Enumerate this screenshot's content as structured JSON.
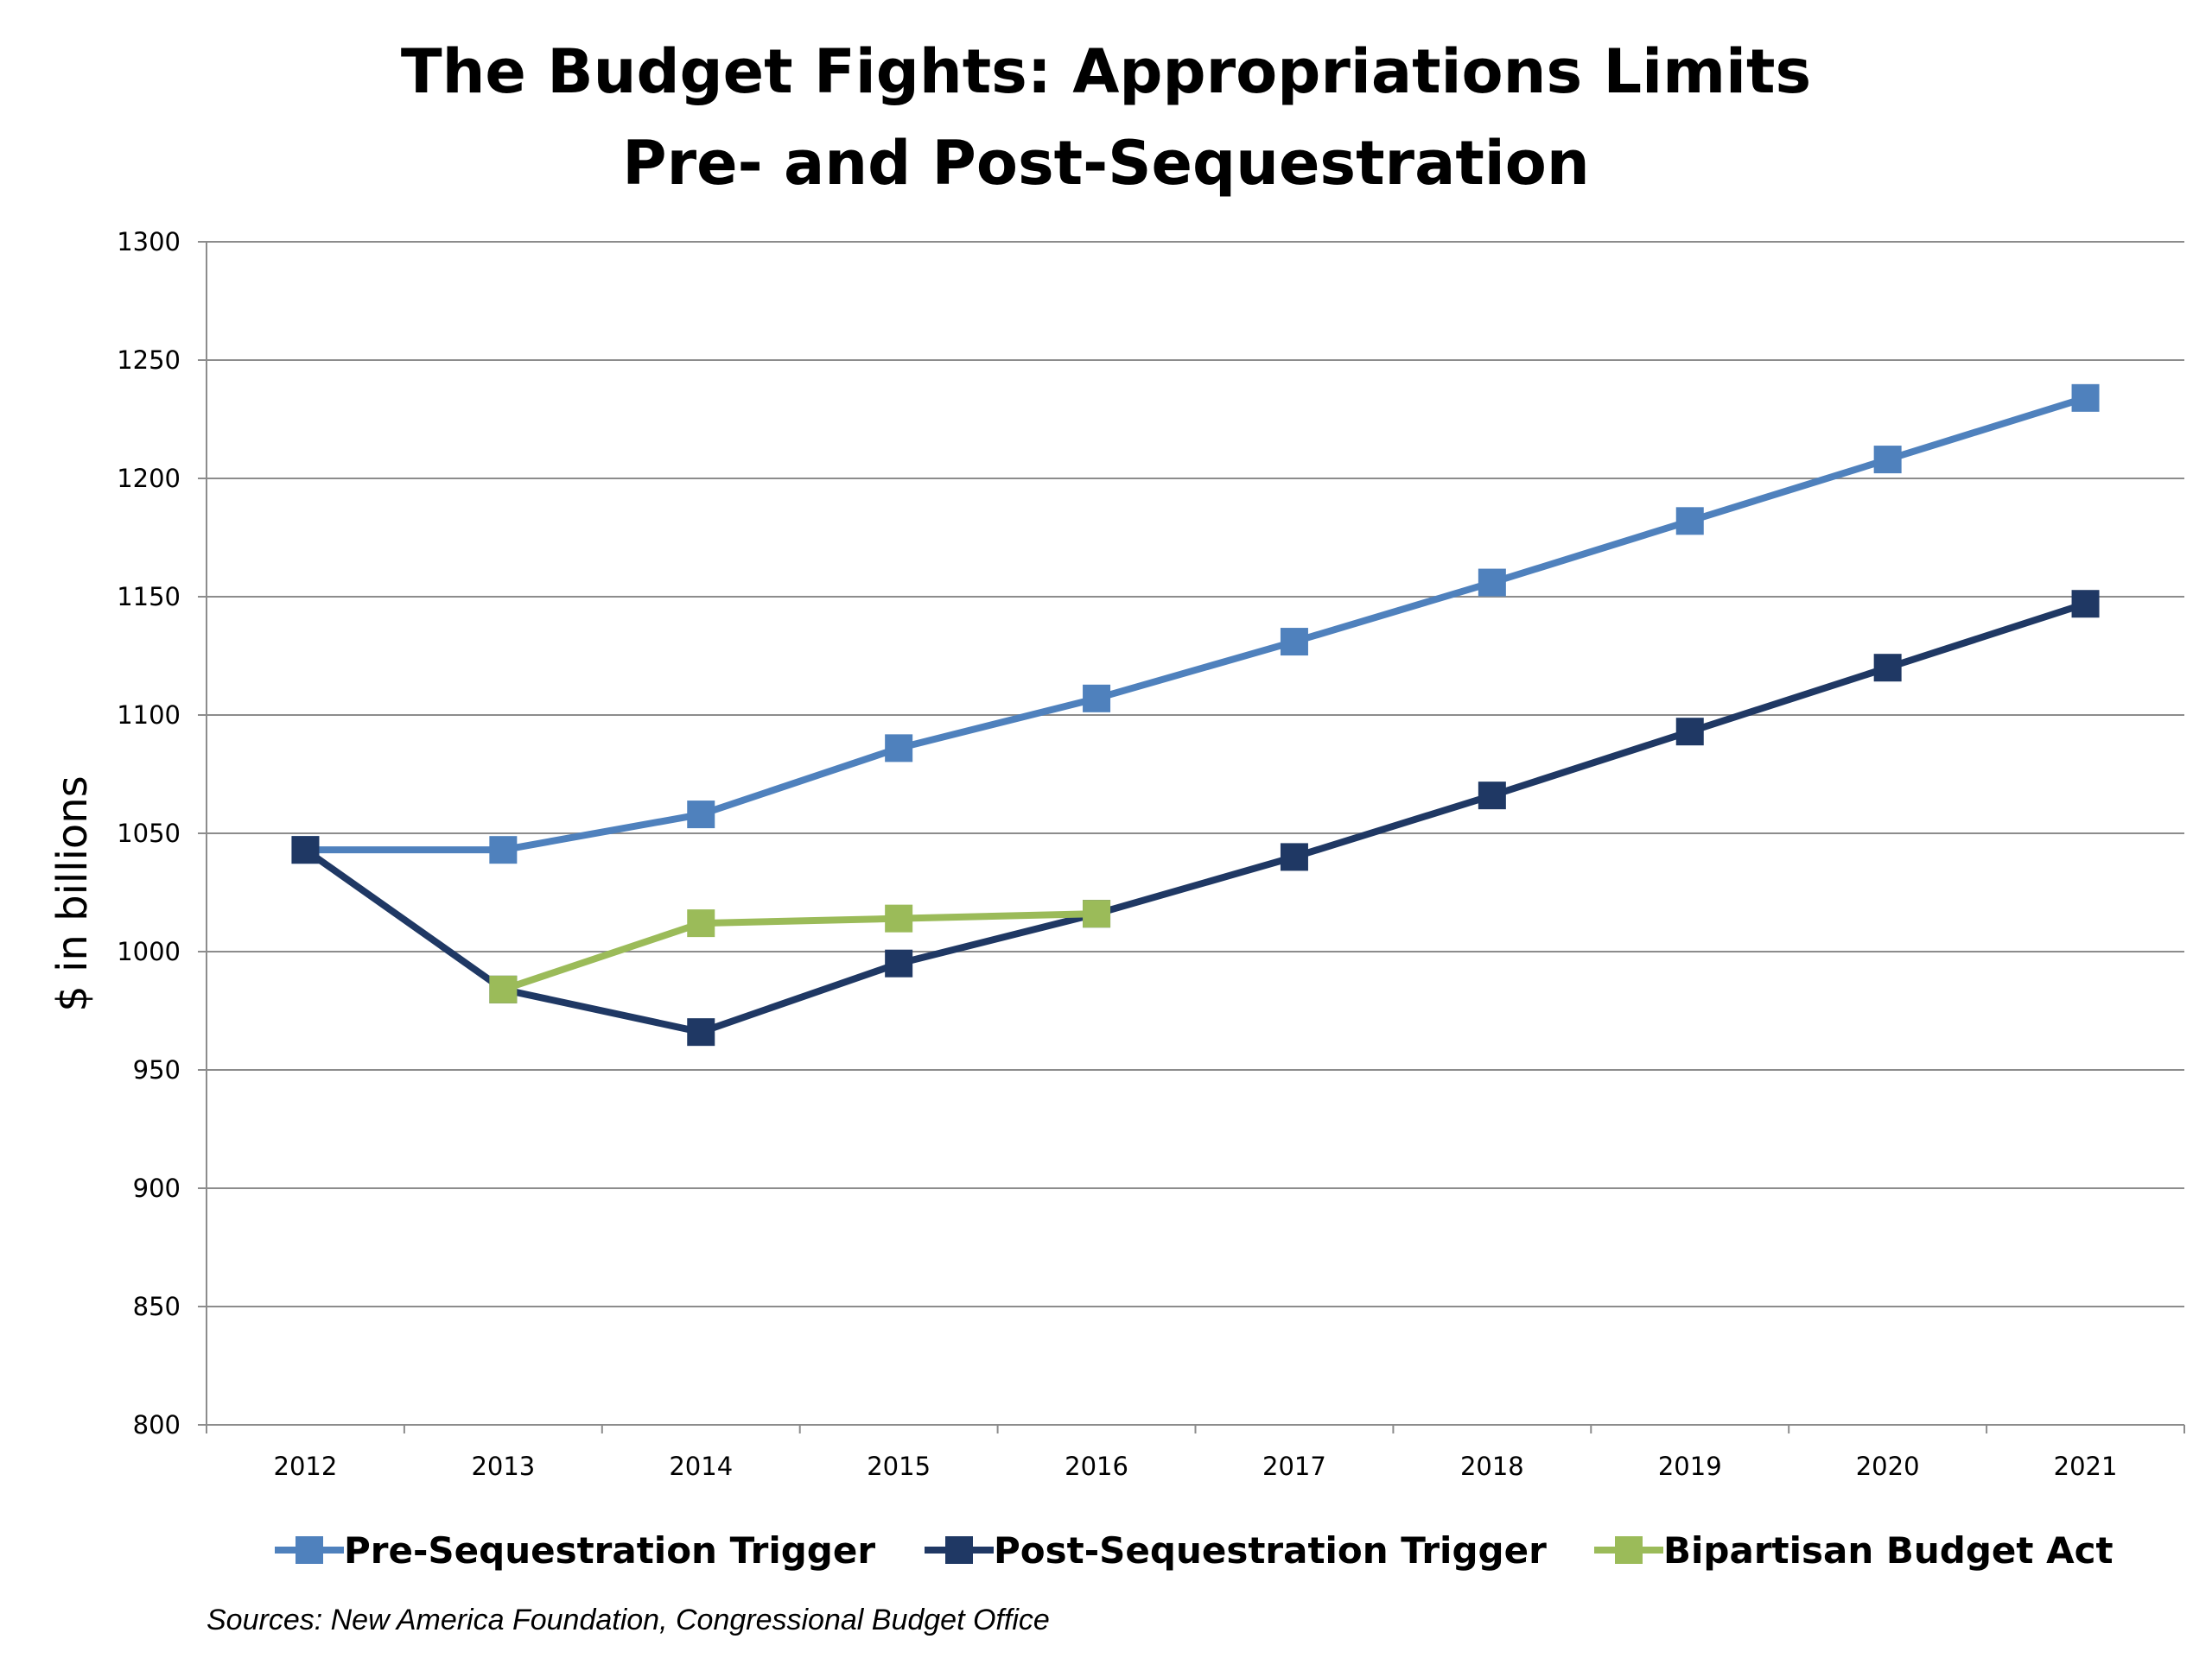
{
  "chart_data": {
    "type": "line",
    "title": [
      "The Budget Fights: Appropriations Limits",
      "Pre- and Post-Sequestration"
    ],
    "xlabel": "",
    "ylabel": "$ in billions",
    "ylim": [
      800,
      1300
    ],
    "yticks": [
      "800",
      "850",
      "900",
      "950",
      "1000",
      "1050",
      "1100",
      "1150",
      "1200",
      "1250",
      "1300"
    ],
    "categories": [
      "2012",
      "2013",
      "2014",
      "2015",
      "2016",
      "2017",
      "2018",
      "2019",
      "2020",
      "2021"
    ],
    "grid": "horizontal",
    "legend_position": "bottom",
    "series": [
      {
        "name": "Pre-Sequestration Trigger",
        "color": "#4f81bd",
        "values": [
          1043,
          1043,
          1058,
          1086,
          1107,
          1131,
          1156,
          1182,
          1208,
          1234
        ]
      },
      {
        "name": "Post-Sequestration Trigger",
        "color": "#1f3864",
        "values": [
          1043,
          984,
          966,
          995,
          1016,
          1040,
          1066,
          1093,
          1120,
          1147
        ]
      },
      {
        "name": "Bipartisan Budget Act",
        "color": "#9bbb59",
        "values": [
          null,
          984,
          1012,
          1014,
          1016,
          null,
          null,
          null,
          null,
          null
        ]
      }
    ],
    "source": "Sources: New America Foundation, Congressional Budget Office"
  }
}
